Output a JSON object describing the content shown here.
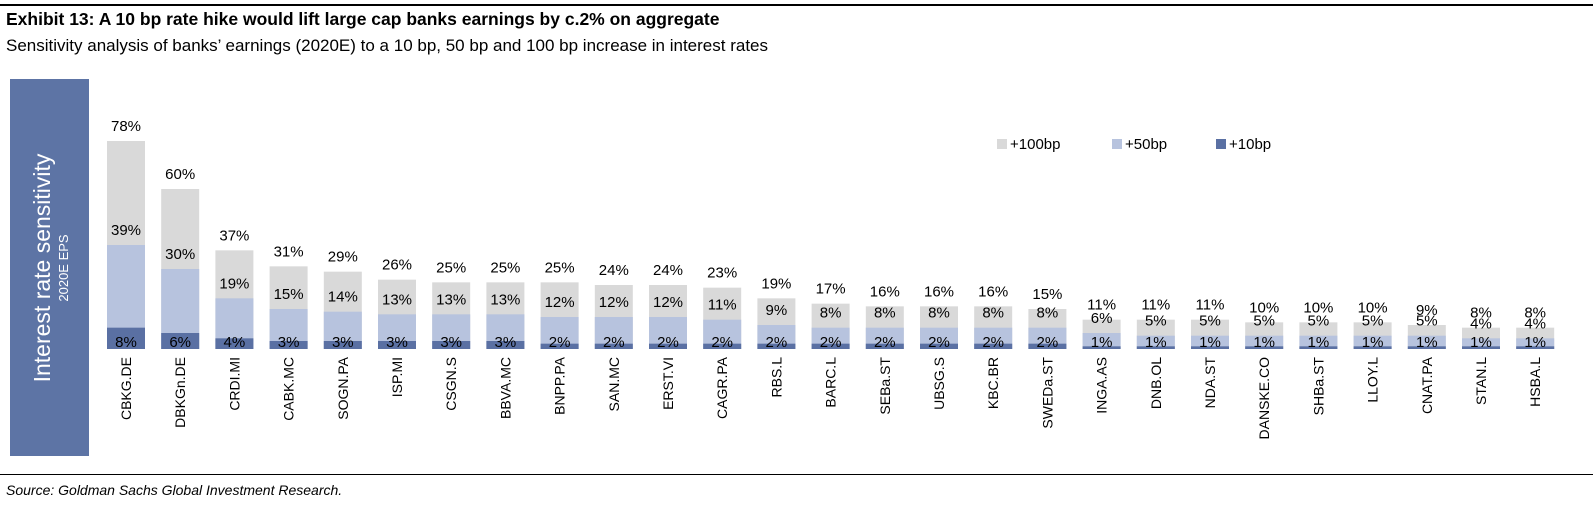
{
  "header": {
    "title": "Exhibit 13: A 10 bp rate hike would lift large cap banks earnings by c.2% on aggregate",
    "subtitle": "Sensitivity analysis of banks’ earnings (2020E) to a 10 bp, 50 bp and 100 bp increase in interest rates"
  },
  "footer": {
    "source": "Source: Goldman Sachs Global Investment Research."
  },
  "colors": {
    "p100": "#d9d9d9",
    "p50": "#b7c3de",
    "p10": "#5a70a3",
    "axis_box": "#5d74a5"
  },
  "chart_data": {
    "type": "bar",
    "title": "Exhibit 13: A 10 bp rate hike would lift large cap banks earnings by c.2% on aggregate",
    "subtitle": "Sensitivity analysis of banks’ earnings (2020E) to a 10 bp, 50 bp and 100 bp increase in interest rates",
    "ylabel": "Interest rate sensitivity",
    "ysublabel": "2020E EPS",
    "xlabel": "",
    "ylim": [
      0,
      78
    ],
    "grid": false,
    "legend_position": "top-right",
    "categories": [
      "CBKG.DE",
      "DBKGn.DE",
      "CRDI.MI",
      "CABK.MC",
      "SOGN.PA",
      "ISP.MI",
      "CSGN.S",
      "BBVA.MC",
      "BNPP.PA",
      "SAN.MC",
      "ERST.VI",
      "CAGR.PA",
      "RBS.L",
      "BARC.L",
      "SEBa.ST",
      "UBSG.S",
      "KBC.BR",
      "SWEDa.ST",
      "INGA.AS",
      "DNB.OL",
      "NDA.ST",
      "DANSKE.CO",
      "SHBa.ST",
      "LLOY.L",
      "CNAT.PA",
      "STAN.L",
      "HSBA.L"
    ],
    "series": [
      {
        "name": "+100bp",
        "values": [
          78,
          60,
          37,
          31,
          29,
          26,
          25,
          25,
          25,
          24,
          24,
          23,
          19,
          17,
          16,
          16,
          16,
          15,
          11,
          11,
          11,
          10,
          10,
          10,
          9,
          8,
          8
        ]
      },
      {
        "name": "+50bp",
        "values": [
          39,
          30,
          19,
          15,
          14,
          13,
          13,
          13,
          12,
          12,
          12,
          11,
          9,
          8,
          8,
          8,
          8,
          8,
          6,
          5,
          5,
          5,
          5,
          5,
          5,
          4,
          4
        ]
      },
      {
        "name": "+10bp",
        "values": [
          8,
          6,
          4,
          3,
          3,
          3,
          3,
          3,
          2,
          2,
          2,
          2,
          2,
          2,
          2,
          2,
          2,
          2,
          1,
          1,
          1,
          1,
          1,
          1,
          1,
          1,
          1
        ]
      }
    ],
    "value_suffix": "%"
  }
}
